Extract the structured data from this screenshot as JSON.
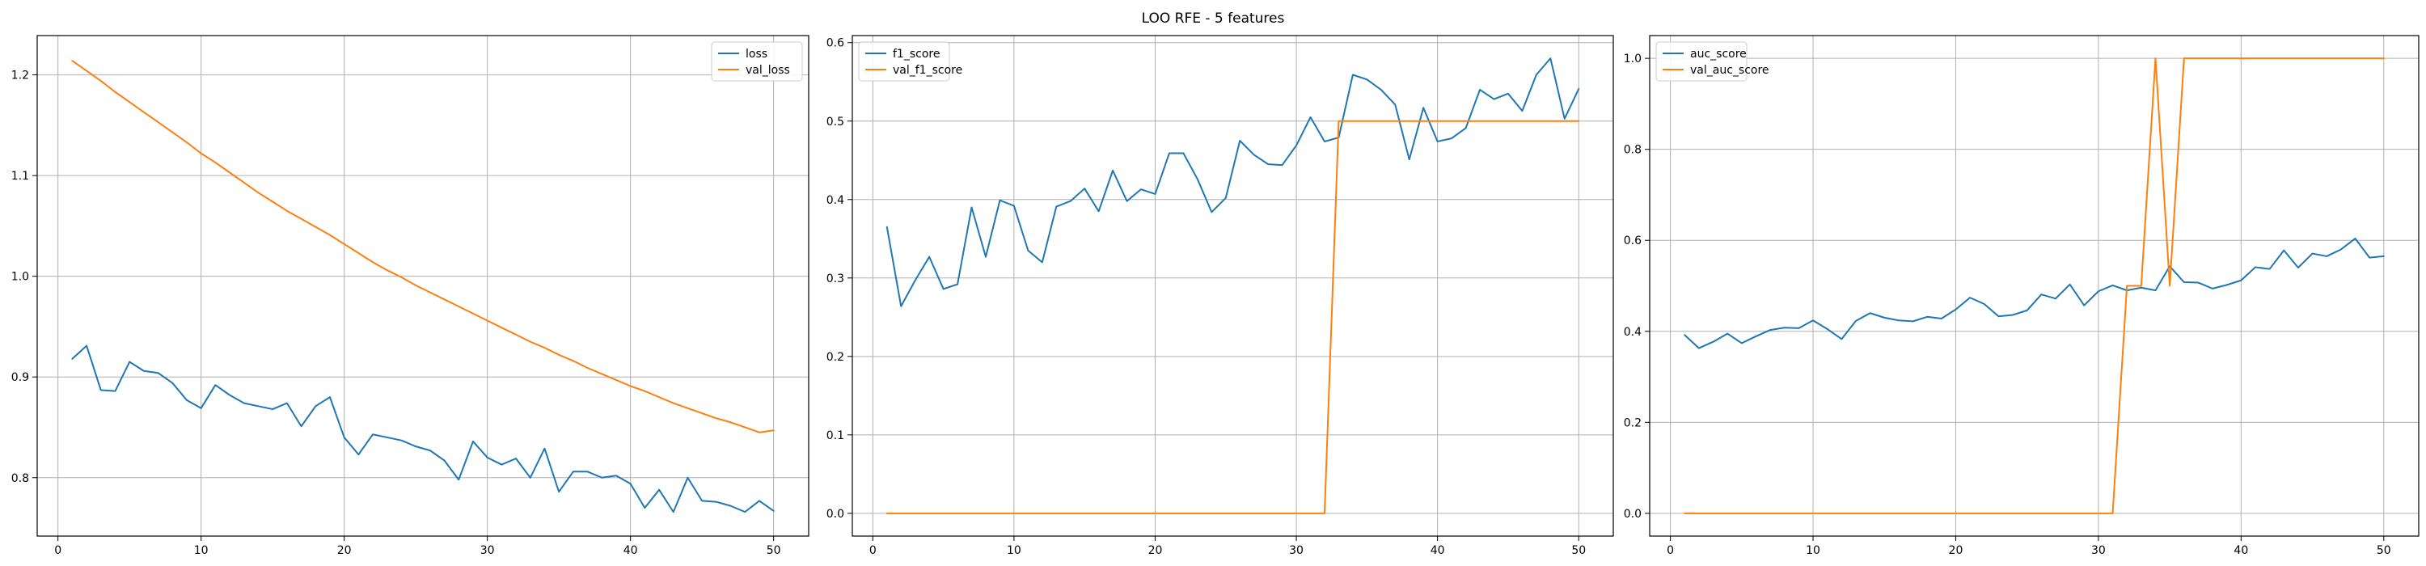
{
  "suptitle": "LOO RFE - 5 features",
  "chart_data": [
    {
      "type": "line",
      "title": "",
      "xlabel": "",
      "ylabel": "",
      "xlim": [
        -1.45,
        52.45
      ],
      "ylim": [
        0.742,
        1.239
      ],
      "xticks": [
        0,
        10,
        20,
        30,
        40,
        50
      ],
      "yticks": [
        0.8,
        0.9,
        1.0,
        1.1,
        1.2
      ],
      "ytick_labels": [
        "0.8",
        "0.9",
        "1.0",
        "1.1",
        "1.2"
      ],
      "grid": true,
      "legend_position": "top-right",
      "x": [
        1,
        2,
        3,
        4,
        5,
        6,
        7,
        8,
        9,
        10,
        11,
        12,
        13,
        14,
        15,
        16,
        17,
        18,
        19,
        20,
        21,
        22,
        23,
        24,
        25,
        26,
        27,
        28,
        29,
        30,
        31,
        32,
        33,
        34,
        35,
        36,
        37,
        38,
        39,
        40,
        41,
        42,
        43,
        44,
        45,
        46,
        47,
        48,
        49,
        50
      ],
      "series": [
        {
          "name": "loss",
          "color": "#1f77b4",
          "values": [
            0.918,
            0.931,
            0.887,
            0.886,
            0.915,
            0.906,
            0.904,
            0.894,
            0.877,
            0.869,
            0.892,
            0.882,
            0.874,
            0.871,
            0.868,
            0.874,
            0.851,
            0.871,
            0.88,
            0.84,
            0.823,
            0.843,
            0.84,
            0.837,
            0.831,
            0.827,
            0.817,
            0.798,
            0.836,
            0.82,
            0.813,
            0.819,
            0.8,
            0.829,
            0.786,
            0.806,
            0.806,
            0.8,
            0.802,
            0.794,
            0.77,
            0.788,
            0.766,
            0.8,
            0.777,
            0.776,
            0.772,
            0.766,
            0.777,
            0.767
          ]
        },
        {
          "name": "val_loss",
          "color": "#ff7f0e",
          "values": [
            1.214,
            1.204,
            1.194,
            1.183,
            1.173,
            1.163,
            1.153,
            1.143,
            1.133,
            1.122,
            1.113,
            1.103,
            1.093,
            1.083,
            1.074,
            1.065,
            1.057,
            1.049,
            1.041,
            1.032,
            1.023,
            1.014,
            1.006,
            0.999,
            0.991,
            0.984,
            0.977,
            0.97,
            0.963,
            0.956,
            0.949,
            0.942,
            0.935,
            0.929,
            0.922,
            0.916,
            0.909,
            0.903,
            0.897,
            0.891,
            0.886,
            0.88,
            0.874,
            0.869,
            0.864,
            0.859,
            0.855,
            0.85,
            0.845,
            0.847
          ]
        }
      ]
    },
    {
      "type": "line",
      "title": "",
      "xlabel": "",
      "ylabel": "",
      "xlim": [
        -1.45,
        52.45
      ],
      "ylim": [
        -0.029,
        0.609
      ],
      "xticks": [
        0,
        10,
        20,
        30,
        40,
        50
      ],
      "yticks": [
        0.0,
        0.1,
        0.2,
        0.3,
        0.4,
        0.5,
        0.6
      ],
      "ytick_labels": [
        "0.0",
        "0.1",
        "0.2",
        "0.3",
        "0.4",
        "0.5",
        "0.6"
      ],
      "grid": true,
      "legend_position": "top-left",
      "x": [
        1,
        2,
        3,
        4,
        5,
        6,
        7,
        8,
        9,
        10,
        11,
        12,
        13,
        14,
        15,
        16,
        17,
        18,
        19,
        20,
        21,
        22,
        23,
        24,
        25,
        26,
        27,
        28,
        29,
        30,
        31,
        32,
        33,
        34,
        35,
        36,
        37,
        38,
        39,
        40,
        41,
        42,
        43,
        44,
        45,
        46,
        47,
        48,
        49,
        50
      ],
      "series": [
        {
          "name": "f1_score",
          "color": "#1f77b4",
          "values": [
            0.365,
            0.264,
            0.297,
            0.327,
            0.286,
            0.292,
            0.39,
            0.327,
            0.399,
            0.392,
            0.335,
            0.32,
            0.391,
            0.398,
            0.414,
            0.385,
            0.437,
            0.398,
            0.413,
            0.407,
            0.459,
            0.459,
            0.426,
            0.384,
            0.402,
            0.475,
            0.457,
            0.445,
            0.444,
            0.469,
            0.505,
            0.474,
            0.479,
            0.559,
            0.553,
            0.54,
            0.521,
            0.451,
            0.517,
            0.474,
            0.478,
            0.491,
            0.54,
            0.528,
            0.535,
            0.513,
            0.559,
            0.58,
            0.503,
            0.541
          ]
        },
        {
          "name": "val_f1_score",
          "color": "#ff7f0e",
          "values": [
            0,
            0,
            0,
            0,
            0,
            0,
            0,
            0,
            0,
            0,
            0,
            0,
            0,
            0,
            0,
            0,
            0,
            0,
            0,
            0,
            0,
            0,
            0,
            0,
            0,
            0,
            0,
            0,
            0,
            0,
            0,
            0,
            0.5,
            0.5,
            0.5,
            0.5,
            0.5,
            0.5,
            0.5,
            0.5,
            0.5,
            0.5,
            0.5,
            0.5,
            0.5,
            0.5,
            0.5,
            0.5,
            0.5,
            0.5
          ]
        }
      ]
    },
    {
      "type": "line",
      "title": "",
      "xlabel": "",
      "ylabel": "",
      "xlim": [
        -1.45,
        52.45
      ],
      "ylim": [
        -0.05,
        1.05
      ],
      "xticks": [
        0,
        10,
        20,
        30,
        40,
        50
      ],
      "yticks": [
        0.0,
        0.2,
        0.4,
        0.6,
        0.8,
        1.0
      ],
      "ytick_labels": [
        "0.0",
        "0.2",
        "0.4",
        "0.6",
        "0.8",
        "1.0"
      ],
      "grid": true,
      "legend_position": "top-left",
      "x": [
        1,
        2,
        3,
        4,
        5,
        6,
        7,
        8,
        9,
        10,
        11,
        12,
        13,
        14,
        15,
        16,
        17,
        18,
        19,
        20,
        21,
        22,
        23,
        24,
        25,
        26,
        27,
        28,
        29,
        30,
        31,
        32,
        33,
        34,
        35,
        36,
        37,
        38,
        39,
        40,
        41,
        42,
        43,
        44,
        45,
        46,
        47,
        48,
        49,
        50
      ],
      "series": [
        {
          "name": "auc_score",
          "color": "#1f77b4",
          "values": [
            0.392,
            0.363,
            0.377,
            0.395,
            0.374,
            0.389,
            0.403,
            0.408,
            0.407,
            0.424,
            0.405,
            0.383,
            0.423,
            0.44,
            0.43,
            0.424,
            0.422,
            0.432,
            0.428,
            0.448,
            0.474,
            0.46,
            0.433,
            0.436,
            0.446,
            0.481,
            0.472,
            0.503,
            0.457,
            0.488,
            0.501,
            0.49,
            0.496,
            0.49,
            0.543,
            0.508,
            0.507,
            0.494,
            0.502,
            0.512,
            0.541,
            0.537,
            0.578,
            0.54,
            0.571,
            0.565,
            0.58,
            0.604,
            0.562,
            0.565
          ]
        },
        {
          "name": "val_auc_score",
          "color": "#ff7f0e",
          "values": [
            0,
            0,
            0,
            0,
            0,
            0,
            0,
            0,
            0,
            0,
            0,
            0,
            0,
            0,
            0,
            0,
            0,
            0,
            0,
            0,
            0,
            0,
            0,
            0,
            0,
            0,
            0,
            0,
            0,
            0,
            0,
            0.5,
            0.5,
            1.0,
            0.5,
            1.0,
            1.0,
            1.0,
            1.0,
            1.0,
            1.0,
            1.0,
            1.0,
            1.0,
            1.0,
            1.0,
            1.0,
            1.0,
            1.0,
            1.0
          ]
        }
      ]
    }
  ]
}
